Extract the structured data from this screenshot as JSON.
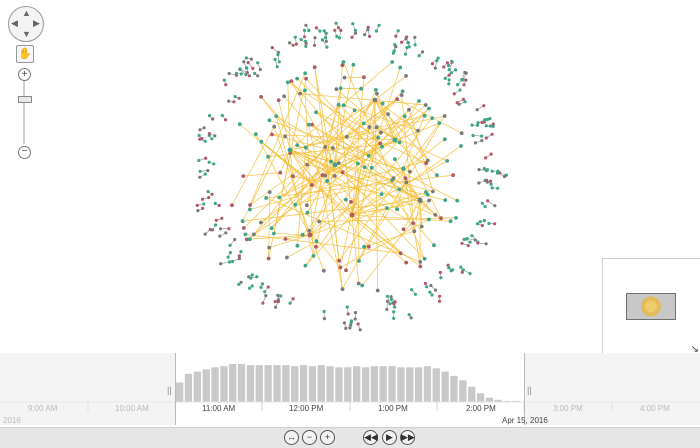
{
  "colors": {
    "node_green": "#3ea58a",
    "node_red": "#b15a66",
    "node_gray": "#7a7a7a",
    "link": "#f4bf3a",
    "histogram_bar": "#c9c9c9"
  },
  "navigation": {
    "pan_icon": "pan-arrows-icon",
    "hand_icon": "hand-icon",
    "zoom_in_icon": "plus-icon",
    "zoom_out_icon": "minus-icon",
    "zoom_level": 0.7
  },
  "timebar": {
    "tick_labels": [
      "9:00 AM",
      "10:00 AM",
      "11:00 AM",
      "12:00 PM",
      "1:00 PM",
      "2:00 PM",
      "3:00 PM",
      "4:00 PM"
    ],
    "date_left": "2016",
    "date_right": "Apr 15, 2016",
    "histogram": [
      18,
      26,
      28,
      30,
      32,
      33,
      35,
      35,
      34,
      34,
      34,
      34,
      34,
      33,
      34,
      33,
      34,
      33,
      32,
      32,
      33,
      32,
      33,
      33,
      33,
      32,
      32,
      32,
      33,
      31,
      28,
      24,
      20,
      14,
      8,
      4,
      2,
      1,
      1
    ]
  },
  "controls": {
    "fit_icon": "fit-width-icon",
    "zoom_out_icon": "zoom-out-icon",
    "zoom_in_icon": "zoom-in-icon",
    "rewind_icon": "rewind-icon",
    "play_icon": "play-icon",
    "forward_icon": "fast-forward-icon"
  }
}
